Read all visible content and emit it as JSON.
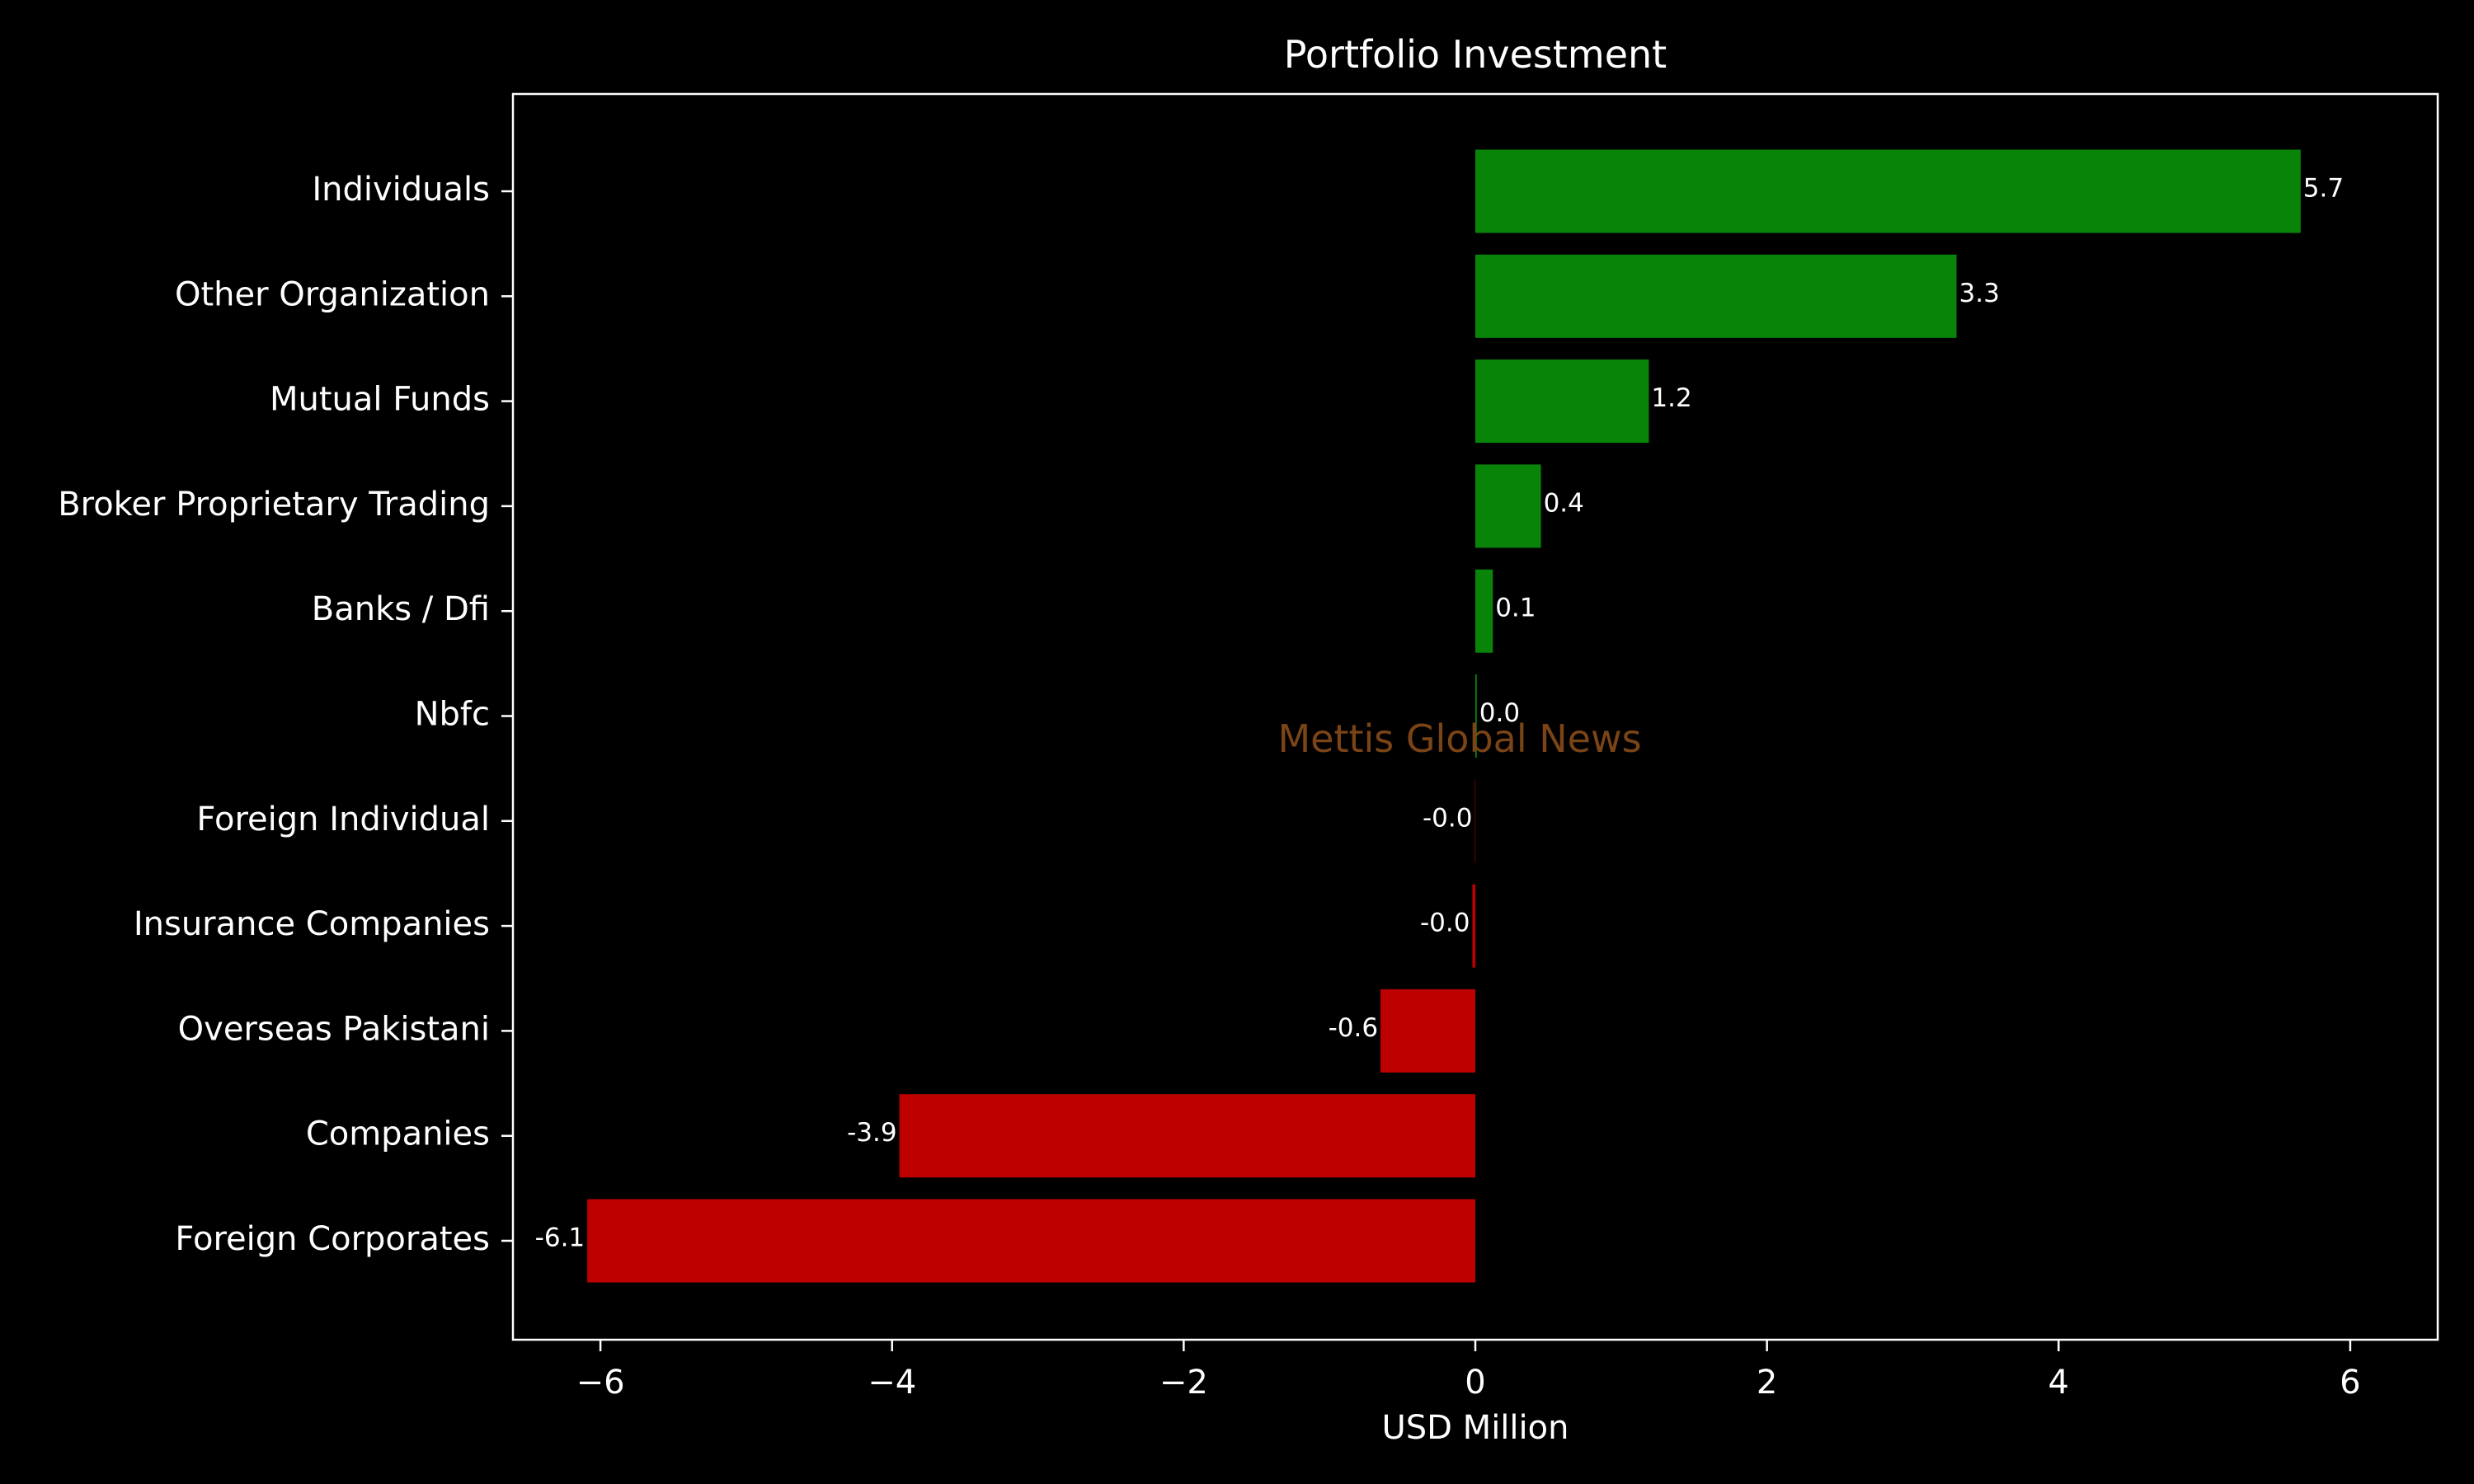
{
  "chart_data": {
    "type": "bar",
    "orientation": "horizontal",
    "title": "Portfolio Investment",
    "xlabel": "USD Million",
    "ylabel": "",
    "xlim": [
      -6.6,
      6.6
    ],
    "xticks": [
      -6,
      -4,
      -2,
      0,
      2,
      4,
      6
    ],
    "xtick_labels": [
      "−6",
      "−4",
      "−2",
      "0",
      "2",
      "4",
      "6"
    ],
    "grid": false,
    "watermark": "Mettis Global News",
    "categories": [
      "Individuals",
      "Other Organization",
      "Mutual Funds",
      "Broker Proprietary Trading",
      "Banks / Dfi",
      "Nbfc",
      "Foreign Individual",
      "Insurance Companies",
      "Overseas Pakistani",
      "Companies",
      "Foreign Corporates "
    ],
    "values": [
      5.66,
      3.3,
      1.19,
      0.45,
      0.12,
      0.01,
      -0.003,
      -0.02,
      -0.65,
      -3.95,
      -6.09
    ],
    "value_labels": [
      "5.7",
      "3.3",
      "1.2",
      "0.4",
      "0.1",
      "0.0",
      "-0.0",
      "-0.0",
      "-0.6",
      "-3.9",
      "-6.1"
    ],
    "colors": {
      "positive": "#088508",
      "negative": "#bf0000",
      "background": "#000000",
      "text": "#ffffff",
      "watermark": "#7a4416"
    }
  }
}
